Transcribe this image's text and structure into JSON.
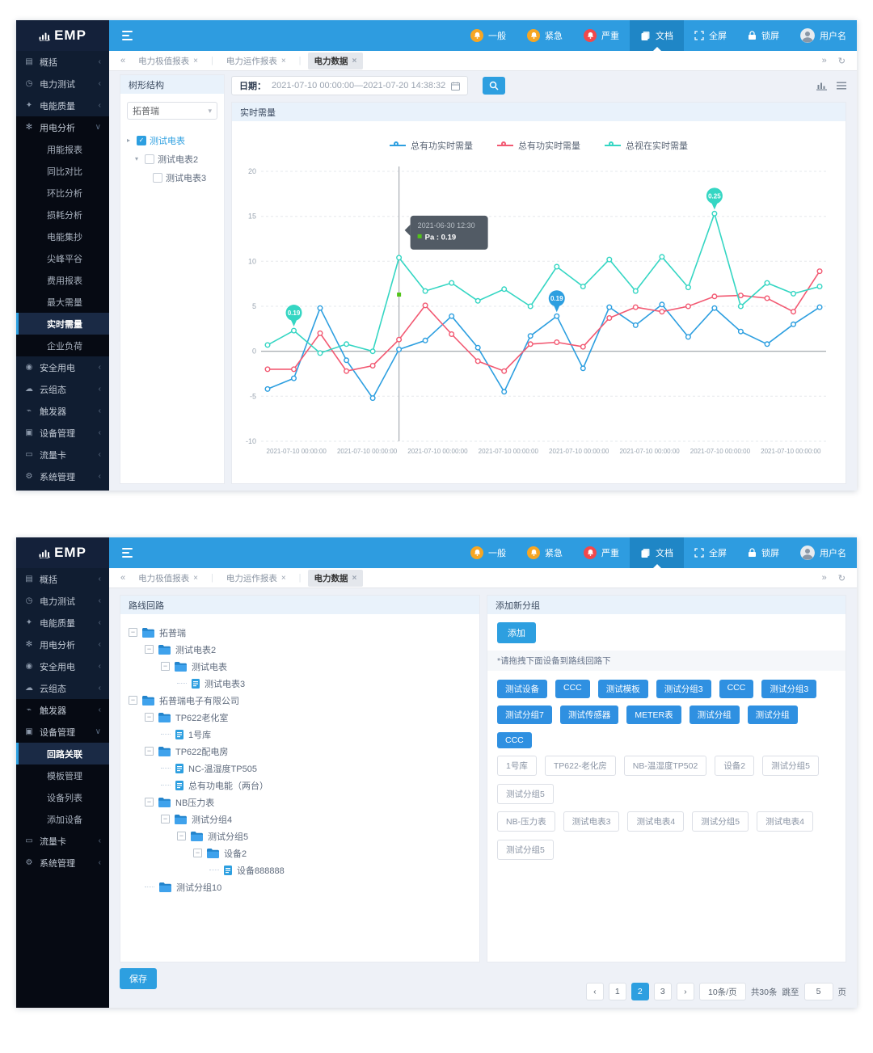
{
  "header": {
    "logo_text": "EMP",
    "alerts": [
      {
        "name": "alert-general",
        "label": "一般",
        "color": "#f6a623"
      },
      {
        "name": "alert-urgent",
        "label": "紧急",
        "color": "#f6a623"
      },
      {
        "name": "alert-critical",
        "label": "严重",
        "color": "#f2484b"
      }
    ],
    "menu_items": [
      {
        "name": "docs",
        "label": "文档",
        "active": true
      },
      {
        "name": "fullscreen",
        "label": "全屏",
        "active": false
      },
      {
        "name": "lockscreen",
        "label": "锁屏",
        "active": false
      },
      {
        "name": "username",
        "label": "用户名",
        "active": false,
        "avatar": true
      }
    ]
  },
  "tab_bar": {
    "collapse": "«",
    "expand": "»",
    "refresh": "↻",
    "tabs": [
      {
        "label": "电力极值报表",
        "active": false
      },
      {
        "label": "电力运作报表",
        "active": false
      },
      {
        "label": "电力数据",
        "active": true
      }
    ]
  },
  "screen1": {
    "sidebar": [
      {
        "label": "概括",
        "icon": "overview",
        "expanded": false
      },
      {
        "label": "电力测试",
        "icon": "power-test",
        "expanded": false
      },
      {
        "label": "电能质量",
        "icon": "quality",
        "expanded": false
      },
      {
        "label": "用电分析",
        "icon": "analysis",
        "expanded": true,
        "dark": true,
        "children": [
          "用能报表",
          "同比对比",
          "环比分析",
          "损耗分析",
          "电能集抄",
          "尖峰平谷",
          "费用报表",
          "最大需量",
          "实时需量",
          "企业负荷"
        ],
        "active_child": "实时需量"
      },
      {
        "label": "安全用电",
        "icon": "safety",
        "expanded": false
      },
      {
        "label": "云组态",
        "icon": "cloud",
        "expanded": false
      },
      {
        "label": "触发器",
        "icon": "trigger",
        "expanded": false
      },
      {
        "label": "设备管理",
        "icon": "device",
        "expanded": false
      },
      {
        "label": "流量卡",
        "icon": "sim",
        "expanded": false
      },
      {
        "label": "系统管理",
        "icon": "system",
        "expanded": false
      }
    ],
    "fill_dark": false,
    "tree_panel": {
      "title": "树形结构",
      "select_value": "拓普瑞",
      "nodes": [
        {
          "label": "测试电表",
          "arrow": "collapsed",
          "checked": true,
          "indent": 0
        },
        {
          "label": "测试电表2",
          "arrow": "expanded",
          "checked": false,
          "indent": 1
        },
        {
          "label": "测试电表3",
          "arrow": null,
          "checked": false,
          "indent": 2
        }
      ]
    },
    "date_bar": {
      "label": "日期：",
      "value": "2021-07-10 00:00:00—2021-07-20 14:38:32"
    },
    "panel_title": "实时需量",
    "chart_data": {
      "type": "line",
      "title": "实时需量",
      "ylim": [
        -10,
        20
      ],
      "yticks": [
        20,
        15,
        10,
        5,
        0,
        -5,
        -10
      ],
      "grid": true,
      "legend_position": "top-center",
      "x_labels": [
        "2021-07-10 00:00:00",
        "2021-07-10 00:00:00",
        "2021-07-10 00:00:00",
        "2021-07-10 00:00:00",
        "2021-07-10 00:00:00",
        "2021-07-10 00:00:00",
        "2021-07-10 00:00:00",
        "2021-07-10 00:00:00"
      ],
      "series": [
        {
          "name": "总有功实时需量",
          "color": "#2d9fe0",
          "values": [
            -4.2,
            -3.0,
            4.8,
            -1.0,
            -5.2,
            0.2,
            1.2,
            3.9,
            0.4,
            -4.5,
            1.7,
            3.9,
            -1.9,
            4.9,
            2.9,
            5.2,
            1.6,
            4.8,
            2.2,
            0.8,
            3.0,
            4.9
          ]
        },
        {
          "name": "总有功实时需量",
          "color": "#f25972",
          "values": [
            -2.0,
            -2.0,
            2.0,
            -2.2,
            -1.6,
            1.3,
            5.1,
            1.9,
            -1.1,
            -2.2,
            0.8,
            1.0,
            0.5,
            3.7,
            4.9,
            4.4,
            5.0,
            6.1,
            6.2,
            5.9,
            4.4,
            8.9
          ]
        },
        {
          "name": "总视在实时需量",
          "color": "#35d6c3",
          "values": [
            0.7,
            2.3,
            -0.2,
            0.8,
            0.0,
            10.4,
            6.7,
            7.6,
            5.6,
            6.9,
            5.0,
            9.4,
            7.2,
            10.2,
            6.7,
            10.5,
            7.1,
            15.3,
            5.0,
            7.6,
            6.4,
            7.2
          ]
        }
      ],
      "pins": [
        {
          "series": 2,
          "index": 1,
          "label": "0.19"
        },
        {
          "series": 0,
          "index": 11,
          "label": "0.19"
        },
        {
          "series": 2,
          "index": 17,
          "label": "0.25"
        }
      ],
      "crosshair_index": 5,
      "tooltip": {
        "title": "2021-06-30 12:30",
        "entry": "Pa : 0.19",
        "dot_color": "#52c41a",
        "point_value": 6.3
      }
    }
  },
  "screen2": {
    "sidebar": [
      {
        "label": "概括",
        "icon": "overview",
        "expanded": false
      },
      {
        "label": "电力测试",
        "icon": "power-test",
        "expanded": false
      },
      {
        "label": "电能质量",
        "icon": "quality",
        "expanded": false
      },
      {
        "label": "用电分析",
        "icon": "analysis",
        "expanded": false
      },
      {
        "label": "安全用电",
        "icon": "safety",
        "expanded": false
      },
      {
        "label": "云组态",
        "icon": "cloud",
        "expanded": false
      },
      {
        "label": "触发器",
        "icon": "trigger",
        "expanded": false,
        "dark": true
      },
      {
        "label": "设备管理",
        "icon": "device",
        "expanded": true,
        "dark": true,
        "children": [
          "回路关联",
          "模板管理",
          "设备列表",
          "添加设备"
        ],
        "active_child": "回路关联"
      },
      {
        "label": "流量卡",
        "icon": "sim",
        "expanded": false,
        "dark": true
      },
      {
        "label": "系统管理",
        "icon": "system",
        "expanded": false,
        "dark": true
      }
    ],
    "fill_dark": true,
    "route_panel": {
      "title": "路线回路",
      "nodes": [
        {
          "indent": 0,
          "expander": true,
          "type": "folder",
          "label": "拓普瑞"
        },
        {
          "indent": 1,
          "expander": true,
          "type": "folder",
          "label": "测试电表2"
        },
        {
          "indent": 2,
          "expander": true,
          "type": "folder",
          "label": "测试电表"
        },
        {
          "indent": 3,
          "expander": false,
          "type": "file",
          "label": "测试电表3"
        },
        {
          "indent": 0,
          "expander": true,
          "type": "folder",
          "label": "拓普瑞电子有限公司"
        },
        {
          "indent": 1,
          "expander": true,
          "type": "folder",
          "label": "TP622老化室"
        },
        {
          "indent": 2,
          "expander": false,
          "type": "file",
          "label": "1号库"
        },
        {
          "indent": 1,
          "expander": true,
          "type": "folder",
          "label": "TP622配电房"
        },
        {
          "indent": 2,
          "expander": false,
          "type": "file",
          "label": "NC-温湿度TP505"
        },
        {
          "indent": 2,
          "expander": false,
          "type": "file",
          "label": "总有功电能（两台）"
        },
        {
          "indent": 1,
          "expander": true,
          "type": "folder",
          "label": "NB压力表"
        },
        {
          "indent": 2,
          "expander": true,
          "type": "folder",
          "label": "测试分组4"
        },
        {
          "indent": 3,
          "expander": true,
          "type": "folder",
          "label": "测试分组5"
        },
        {
          "indent": 4,
          "expander": true,
          "type": "folder",
          "label": "设备2"
        },
        {
          "indent": 5,
          "expander": false,
          "type": "file",
          "label": "设备888888"
        },
        {
          "indent": 1,
          "expander": false,
          "type": "folder",
          "label": "测试分组10"
        }
      ]
    },
    "group_panel": {
      "title": "添加新分组",
      "add_button": "添加",
      "hint": "*请拖拽下面设备到路线回路下",
      "blue_tag_rows": [
        [
          "测试设备",
          "CCC",
          "测试模板",
          "测试分组3",
          "CCC",
          "测试分组3"
        ],
        [
          "测试分组7",
          "测试传感器",
          "METER表",
          "测试分组",
          "测试分组",
          "CCC"
        ]
      ],
      "white_tag_rows": [
        [
          "1号库",
          "TP622-老化房",
          "NB-温湿度TP502",
          "设备2",
          "测试分组5",
          "测试分组5"
        ],
        [
          "NB-压力表",
          "测试电表3",
          "测试电表4",
          "测试分组5",
          "测试电表4",
          "测试分组5"
        ]
      ]
    },
    "save_button": "保存",
    "pagination": {
      "prev": "‹",
      "next": "›",
      "pages": [
        "1",
        "2",
        "3"
      ],
      "active": "2",
      "size": "10条/页",
      "total": "共30条",
      "jump": "跳至",
      "jump_value": "5",
      "unit": "页"
    }
  }
}
